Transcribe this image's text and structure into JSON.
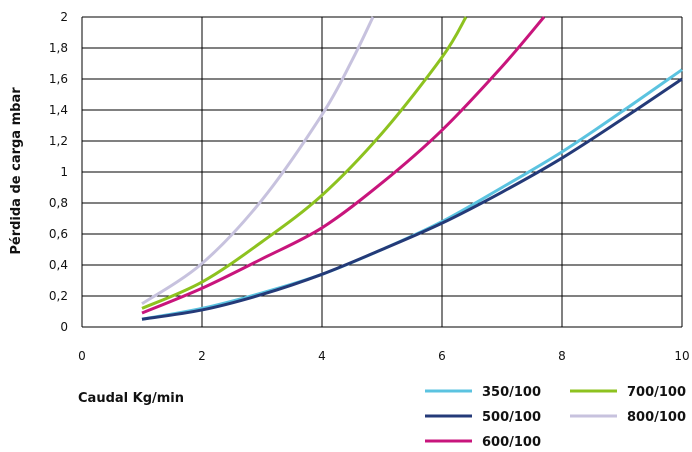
{
  "chart_data": {
    "type": "line",
    "title": "",
    "xlabel": "Caudal Kg/min",
    "ylabel": "Pérdida de carga mbar",
    "xlim": [
      0,
      10
    ],
    "ylim": [
      0,
      2
    ],
    "x_ticks": [
      "0",
      "2",
      "4",
      "6",
      "8",
      "10"
    ],
    "y_ticks": [
      "0",
      "0,2",
      "0,4",
      "0,6",
      "0,8",
      "1",
      "1,2",
      "1,4",
      "1,6",
      "1,8",
      "2"
    ],
    "grid": true,
    "legend_position": "bottom-right",
    "series": [
      {
        "name": "350/100",
        "color": "#5bc3e0",
        "x": [
          1,
          2,
          3,
          4,
          5,
          6,
          7,
          8,
          9,
          10
        ],
        "y": [
          0.05,
          0.12,
          0.22,
          0.34,
          0.5,
          0.68,
          0.9,
          1.13,
          1.39,
          1.66
        ]
      },
      {
        "name": "500/100",
        "color": "#243a78",
        "x": [
          1,
          2,
          3,
          4,
          5,
          6,
          7,
          8,
          9,
          10
        ],
        "y": [
          0.05,
          0.11,
          0.21,
          0.34,
          0.5,
          0.67,
          0.87,
          1.09,
          1.34,
          1.6
        ]
      },
      {
        "name": "600/100",
        "color": "#c8157c",
        "x": [
          1,
          2,
          3,
          4,
          5,
          6,
          7,
          7.7
        ],
        "y": [
          0.09,
          0.25,
          0.44,
          0.64,
          0.93,
          1.27,
          1.68,
          2.0
        ]
      },
      {
        "name": "700/100",
        "color": "#8dc21f",
        "x": [
          1,
          2,
          3,
          4,
          5,
          6,
          6.4
        ],
        "y": [
          0.12,
          0.29,
          0.55,
          0.85,
          1.25,
          1.74,
          2.0
        ]
      },
      {
        "name": "800/100",
        "color": "#c7c2de",
        "x": [
          1,
          2,
          3,
          4,
          4.5,
          4.85
        ],
        "y": [
          0.15,
          0.41,
          0.82,
          1.37,
          1.72,
          2.0
        ]
      }
    ]
  }
}
